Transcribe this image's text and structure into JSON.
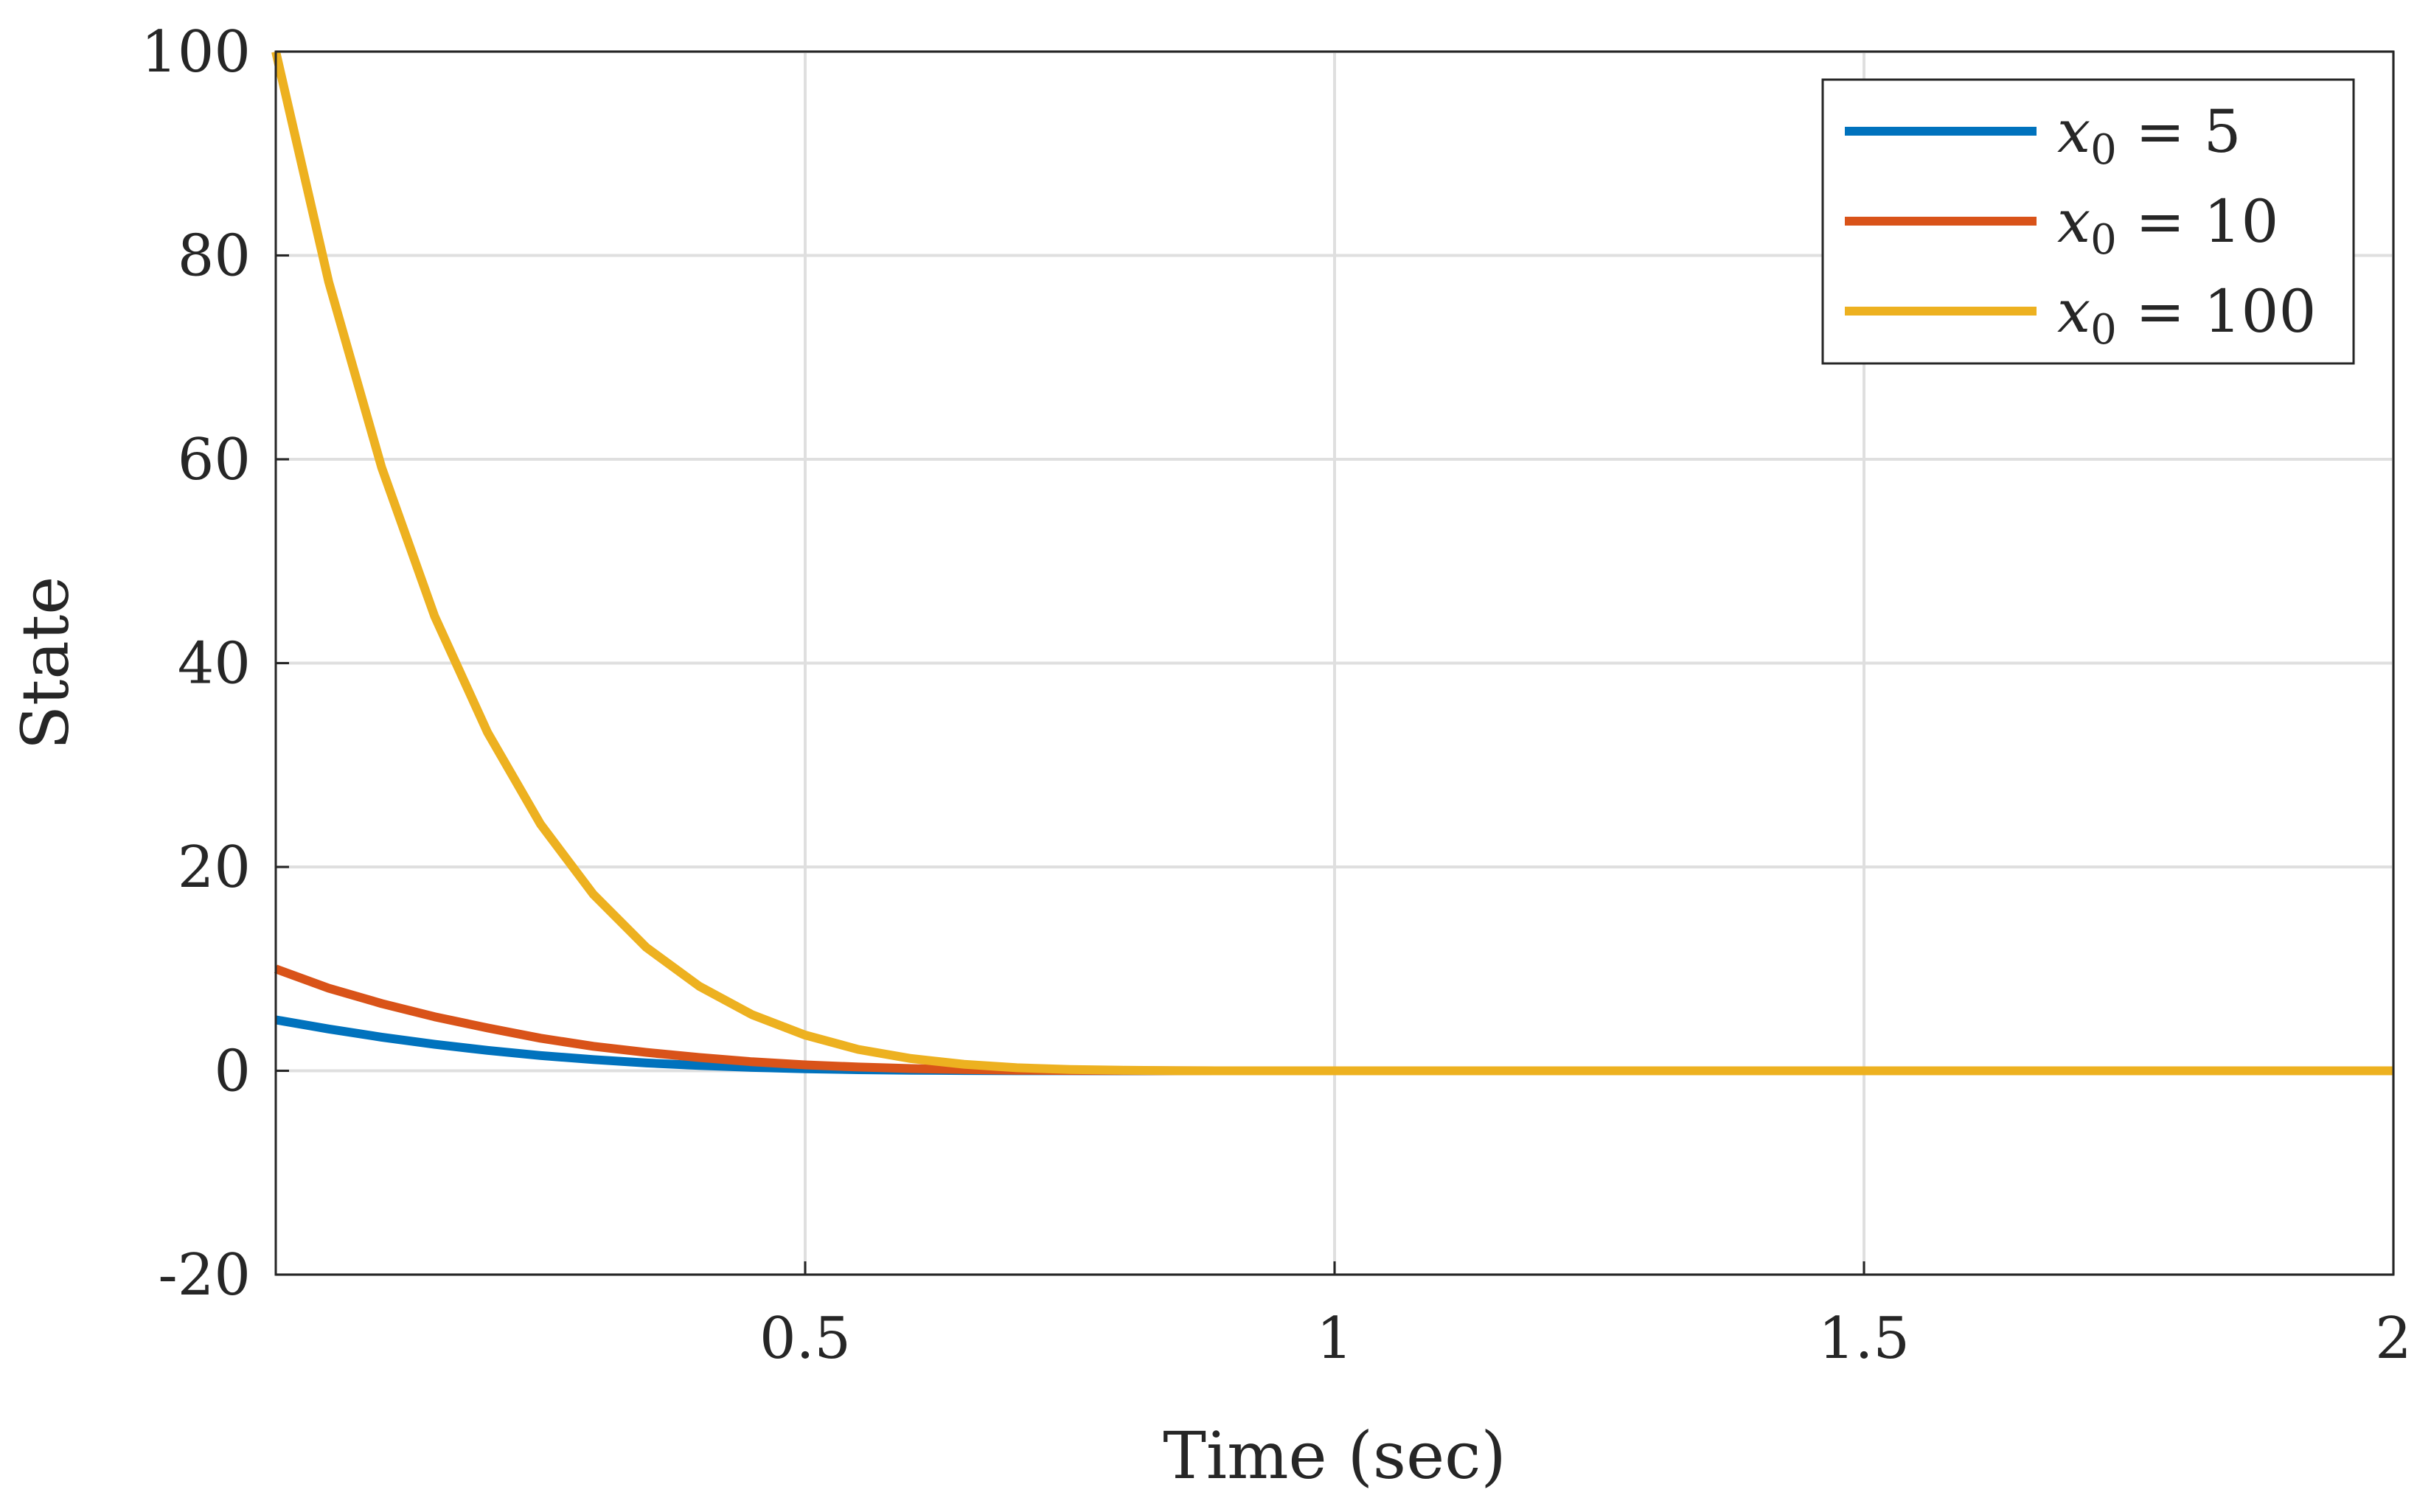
{
  "chart_data": {
    "type": "line",
    "title": "",
    "xlabel": "Time (sec)",
    "ylabel": "State",
    "xlim": [
      0,
      2
    ],
    "ylim": [
      -20,
      100
    ],
    "grid": true,
    "xticks": [
      0.5,
      1,
      1.5,
      2
    ],
    "xtick_labels": [
      "0.5",
      "1",
      "1.5",
      "2"
    ],
    "yticks": [
      -20,
      0,
      20,
      40,
      60,
      80,
      100
    ],
    "ytick_labels": [
      "-20",
      "0",
      "20",
      "40",
      "60",
      "80",
      "100"
    ],
    "legend_position": "top-right",
    "x": [
      0,
      0.05,
      0.1,
      0.15,
      0.2,
      0.25,
      0.3,
      0.35,
      0.4,
      0.45,
      0.5,
      0.55,
      0.6,
      0.65,
      0.7,
      0.75,
      0.8,
      0.85,
      0.9,
      0.95,
      1.0,
      1.25,
      1.5,
      1.75,
      2.0
    ],
    "series": [
      {
        "name": "x0 = 5",
        "legend_var": "x",
        "legend_sub": "0",
        "legend_rest": " = 5",
        "color": "#0072BD",
        "values": [
          5,
          4.1,
          3.3,
          2.6,
          2.0,
          1.5,
          1.1,
          0.77,
          0.52,
          0.33,
          0.2,
          0.11,
          0.06,
          0.03,
          0.01,
          0.005,
          0.002,
          0.001,
          0,
          0,
          0,
          0,
          0,
          0,
          0
        ]
      },
      {
        "name": "x0 = 10",
        "legend_var": "x",
        "legend_sub": "0",
        "legend_rest": " = 10",
        "color": "#D95319",
        "values": [
          10,
          8.1,
          6.6,
          5.3,
          4.2,
          3.2,
          2.4,
          1.8,
          1.3,
          0.88,
          0.58,
          0.37,
          0.22,
          0.12,
          0.06,
          0.03,
          0.012,
          0.004,
          0.001,
          0,
          0,
          0,
          0,
          0,
          0
        ]
      },
      {
        "name": "x0 = 100",
        "legend_var": "x",
        "legend_sub": "0",
        "legend_rest": " = 100",
        "color": "#EDB120",
        "values": [
          100,
          77.4,
          59.2,
          44.6,
          33.2,
          24.2,
          17.3,
          12.1,
          8.3,
          5.5,
          3.5,
          2.1,
          1.2,
          0.64,
          0.3,
          0.13,
          0.05,
          0.01,
          0.001,
          0,
          0,
          0,
          0,
          0,
          0
        ]
      }
    ]
  }
}
